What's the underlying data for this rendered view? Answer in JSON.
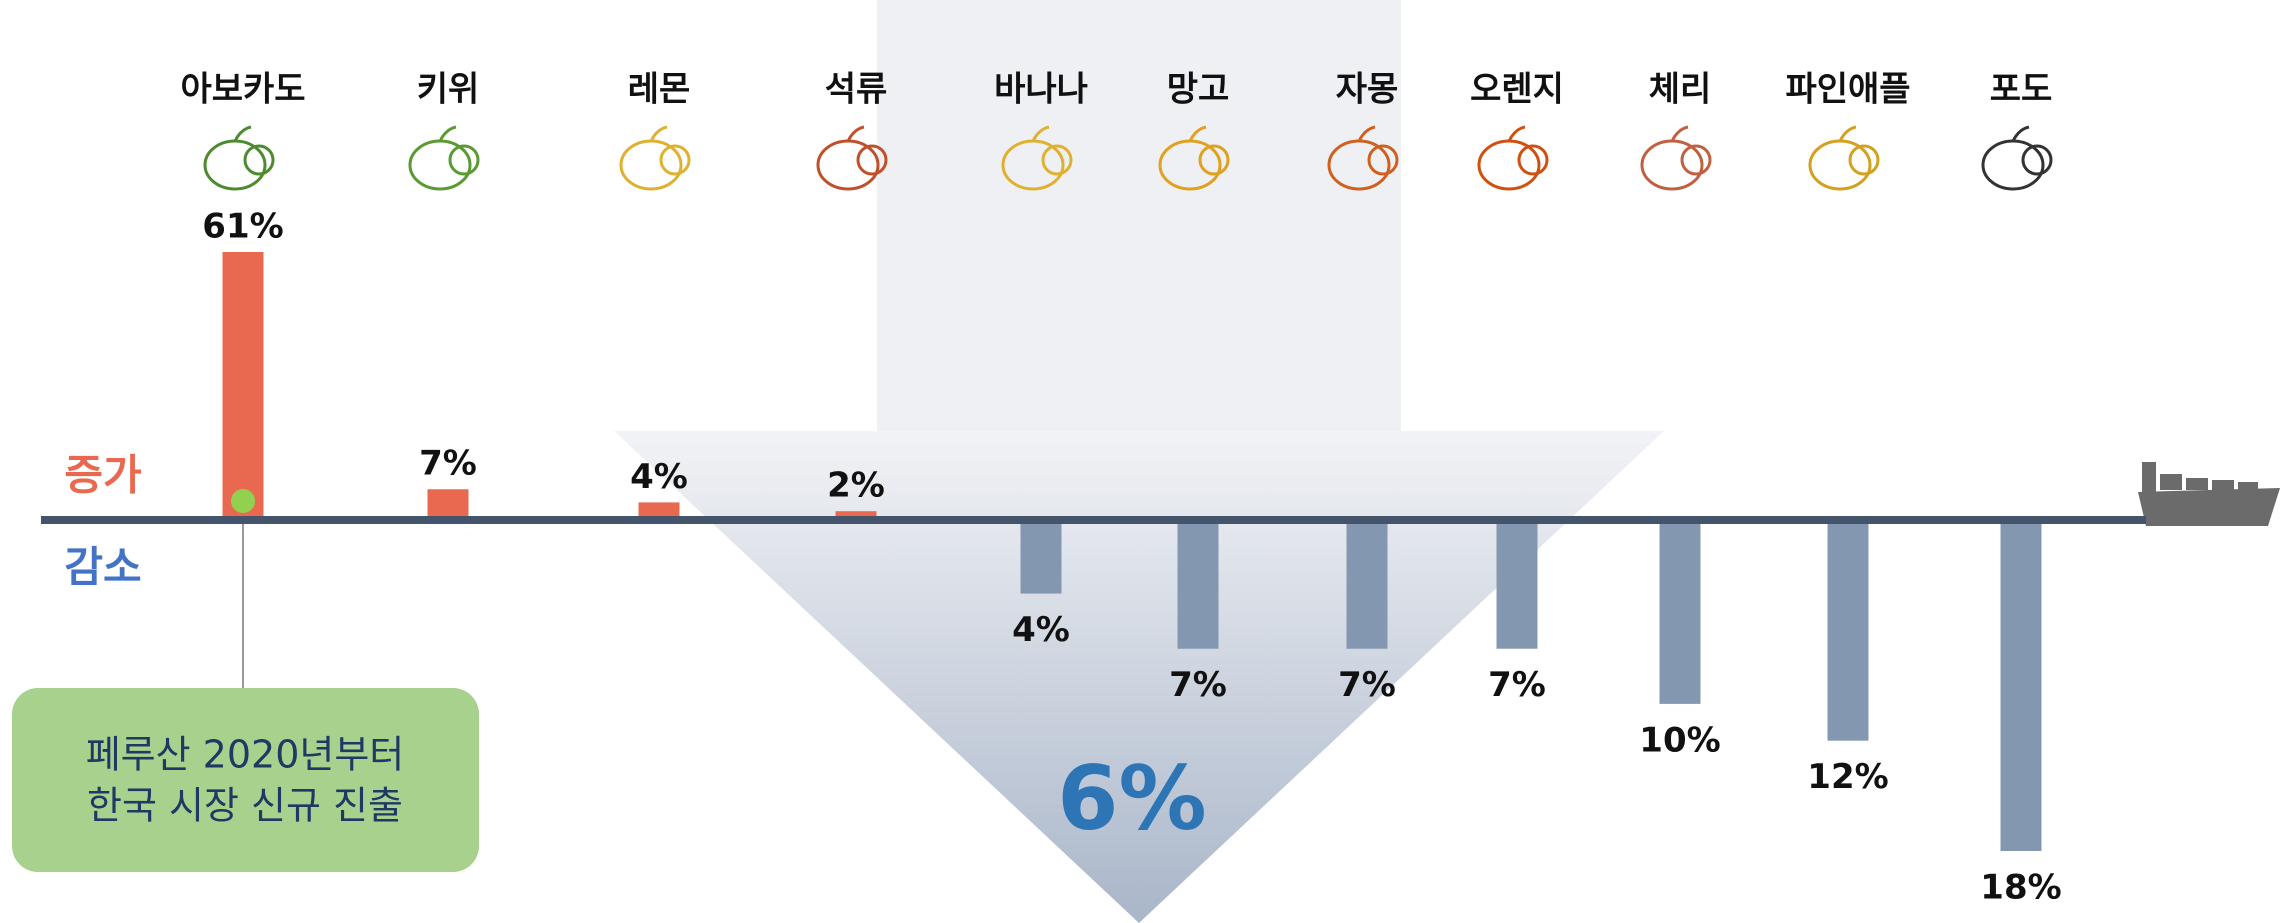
{
  "chart_data": {
    "type": "bar",
    "categories": [
      "아보카도",
      "키위",
      "레몬",
      "석류",
      "바나나",
      "망고",
      "자몽",
      "오렌지",
      "체리",
      "파인애플",
      "포도"
    ],
    "values": [
      61,
      7,
      4,
      2,
      -4,
      -7,
      -7,
      -7,
      -10,
      -12,
      -18
    ],
    "value_labels": [
      "61%",
      "7%",
      "4%",
      "2%",
      "4%",
      "7%",
      "7%",
      "7%",
      "10%",
      "12%",
      "18%"
    ],
    "colors": {
      "up": "#e8694f",
      "down": "#8497b0"
    },
    "annotations": {
      "up": "증가",
      "down": "감소",
      "average": "6%",
      "note": [
        "페루산 2020년부터",
        "한국 시장 신규 진출"
      ]
    }
  }
}
